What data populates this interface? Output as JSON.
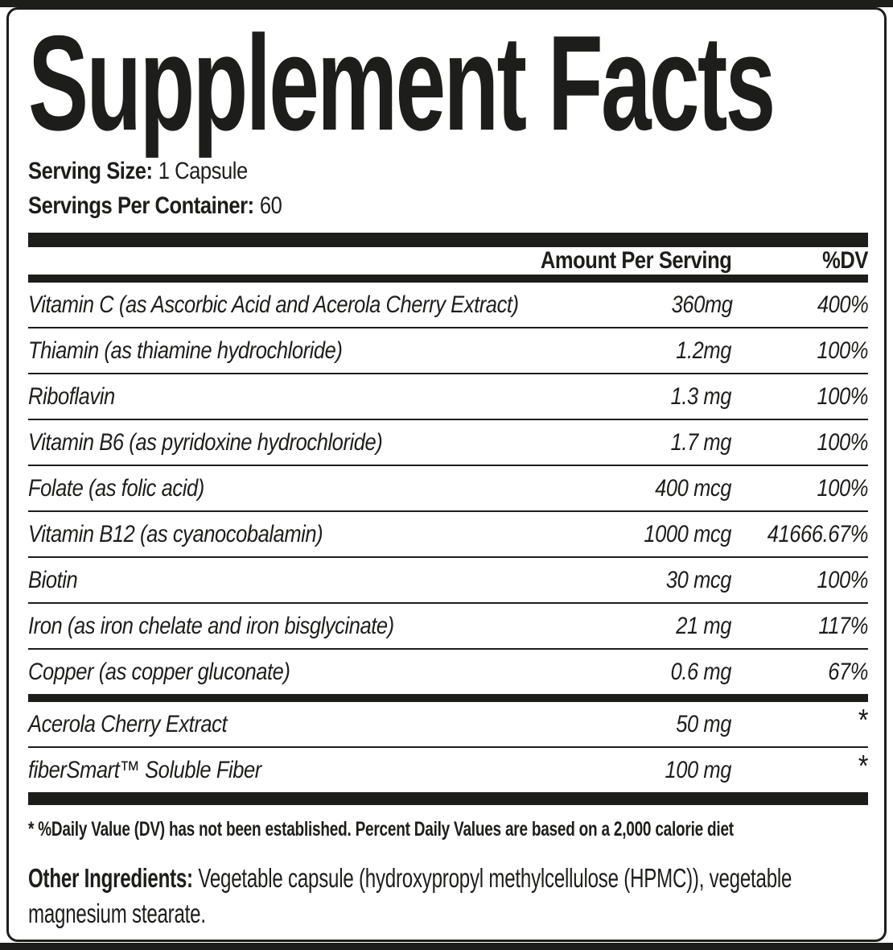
{
  "title": "Supplement Facts",
  "serving": {
    "size_label": "Serving Size:",
    "size_value": "1 Capsule",
    "per_container_label": "Servings Per Container:",
    "per_container_value": "60"
  },
  "table": {
    "amount_header": "Amount Per Serving",
    "dv_header": "%DV",
    "rows": [
      {
        "name": "Vitamin C (as Ascorbic Acid and Acerola Cherry Extract)",
        "amount": "360mg",
        "dv": "400%",
        "section": 1
      },
      {
        "name": "Thiamin (as thiamine hydrochloride)",
        "amount": "1.2mg",
        "dv": "100%",
        "section": 1
      },
      {
        "name": "Riboflavin",
        "amount": "1.3 mg",
        "dv": "100%",
        "section": 1
      },
      {
        "name": "Vitamin B6 (as pyridoxine hydrochloride)",
        "amount": "1.7 mg",
        "dv": "100%",
        "section": 1
      },
      {
        "name": "Folate (as folic acid)",
        "amount": "400 mcg",
        "dv": "100%",
        "section": 1
      },
      {
        "name": "Vitamin B12 (as cyanocobalamin)",
        "amount": "1000 mcg",
        "dv": "41666.67%",
        "section": 1
      },
      {
        "name": "Biotin",
        "amount": "30 mcg",
        "dv": "100%",
        "section": 1
      },
      {
        "name": "Iron (as iron chelate and iron bisglycinate)",
        "amount": "21 mg",
        "dv": "117%",
        "section": 1
      },
      {
        "name": "Copper (as copper gluconate)",
        "amount": "0.6 mg",
        "dv": "67%",
        "section": 1
      },
      {
        "name": "Acerola Cherry Extract",
        "amount": "50 mg",
        "dv": "*",
        "section": 2
      },
      {
        "name": "fiberSmart™ Soluble Fiber",
        "amount": "100 mg",
        "dv": "*",
        "section": 2
      }
    ]
  },
  "footnote": "* %Daily Value (DV) has not been established. Percent Daily Values are based on a 2,000 calorie diet",
  "other_ingredients": {
    "label": "Other Ingredients:",
    "text": "Vegetable capsule (hydroxypropyl methylcellulose (HPMC)), vegetable magnesium stearate."
  },
  "colors": {
    "ink": "#1d1d1b",
    "background": "#ffffff"
  }
}
